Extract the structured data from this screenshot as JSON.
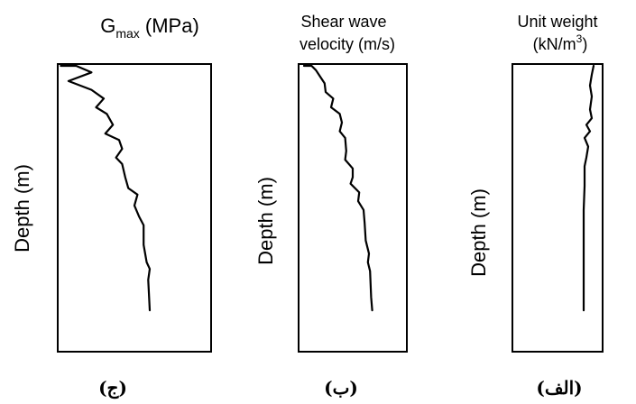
{
  "chart_data": [
    {
      "type": "line",
      "title": "G",
      "title_sub": "max",
      "title_unit": " (MPa)",
      "ylabel": "Depth (m)",
      "caption": "(ج)",
      "series": [
        {
          "values": [
            [
              0.02,
              0.0
            ],
            [
              0.12,
              0.0
            ],
            [
              0.22,
              0.03
            ],
            [
              0.07,
              0.07
            ],
            [
              0.22,
              0.11
            ],
            [
              0.3,
              0.15
            ],
            [
              0.25,
              0.19
            ],
            [
              0.32,
              0.22
            ],
            [
              0.36,
              0.27
            ],
            [
              0.31,
              0.31
            ],
            [
              0.4,
              0.34
            ],
            [
              0.42,
              0.38
            ],
            [
              0.38,
              0.42
            ],
            [
              0.42,
              0.45
            ],
            [
              0.44,
              0.51
            ],
            [
              0.46,
              0.56
            ],
            [
              0.52,
              0.59
            ],
            [
              0.5,
              0.64
            ],
            [
              0.53,
              0.69
            ],
            [
              0.56,
              0.73
            ],
            [
              0.56,
              0.82
            ],
            [
              0.58,
              0.9
            ],
            [
              0.6,
              0.93
            ],
            [
              0.59,
              0.98
            ],
            [
              0.6,
              1.12
            ]
          ]
        }
      ]
    },
    {
      "type": "line",
      "title": "Shear wave",
      "title2": "velocity (m/s)",
      "ylabel": "Depth (m)",
      "caption": "(ب)",
      "series": [
        {
          "values": [
            [
              0.05,
              0.0
            ],
            [
              0.12,
              0.0
            ],
            [
              0.16,
              0.02
            ],
            [
              0.2,
              0.05
            ],
            [
              0.24,
              0.08
            ],
            [
              0.25,
              0.12
            ],
            [
              0.32,
              0.15
            ],
            [
              0.3,
              0.19
            ],
            [
              0.38,
              0.22
            ],
            [
              0.4,
              0.26
            ],
            [
              0.38,
              0.3
            ],
            [
              0.43,
              0.33
            ],
            [
              0.44,
              0.39
            ],
            [
              0.43,
              0.43
            ],
            [
              0.5,
              0.47
            ],
            [
              0.5,
              0.51
            ],
            [
              0.48,
              0.54
            ],
            [
              0.56,
              0.58
            ],
            [
              0.55,
              0.62
            ],
            [
              0.6,
              0.66
            ],
            [
              0.61,
              0.72
            ],
            [
              0.62,
              0.8
            ],
            [
              0.65,
              0.86
            ],
            [
              0.64,
              0.9
            ],
            [
              0.66,
              0.94
            ],
            [
              0.67,
              1.06
            ],
            [
              0.68,
              1.12
            ]
          ]
        }
      ]
    },
    {
      "type": "line",
      "title": "Unit weight",
      "title2": "(kN/m",
      "title2_sup": "3",
      "title2_end": ")",
      "ylabel": "Depth (m)",
      "caption": "(الف)",
      "series": [
        {
          "values": [
            [
              0.9,
              0.0
            ],
            [
              0.88,
              0.04
            ],
            [
              0.86,
              0.09
            ],
            [
              0.88,
              0.14
            ],
            [
              0.86,
              0.2
            ],
            [
              0.88,
              0.24
            ],
            [
              0.82,
              0.27
            ],
            [
              0.86,
              0.3
            ],
            [
              0.8,
              0.33
            ],
            [
              0.84,
              0.37
            ],
            [
              0.82,
              0.42
            ],
            [
              0.8,
              0.46
            ],
            [
              0.8,
              0.55
            ],
            [
              0.79,
              0.66
            ],
            [
              0.79,
              0.8
            ],
            [
              0.79,
              0.95
            ],
            [
              0.79,
              1.12
            ]
          ]
        }
      ]
    }
  ]
}
